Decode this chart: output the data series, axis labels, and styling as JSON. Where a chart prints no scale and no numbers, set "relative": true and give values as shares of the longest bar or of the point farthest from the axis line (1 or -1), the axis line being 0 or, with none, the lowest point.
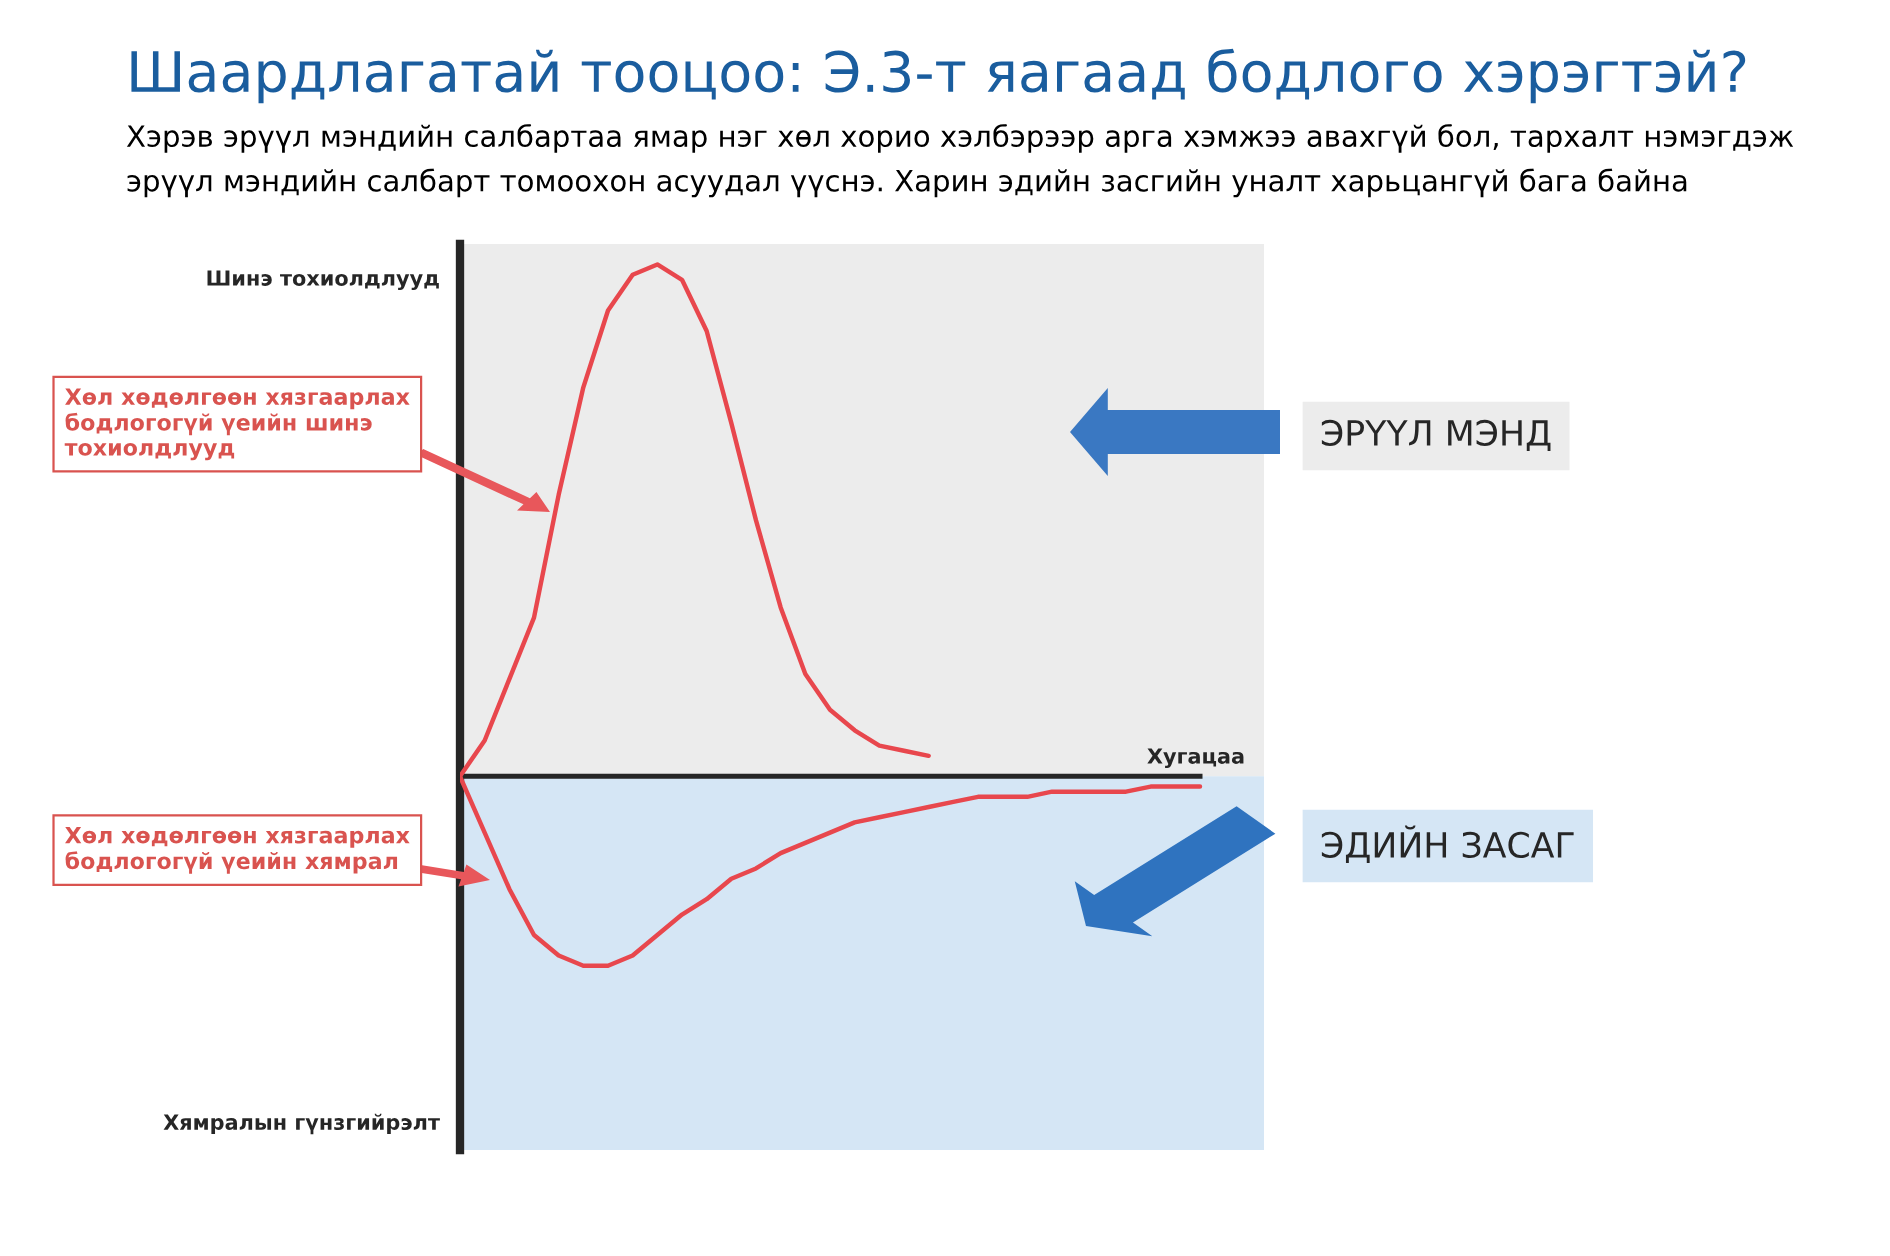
{
  "chart_data": {
    "type": "line",
    "title": "Шаардлагатай тооцоо: Э.3-т яагаад бодлого хэрэгтэй?",
    "subtitle": "Хэрэв эрүүл мэндийн салбартаа ямар нэг хөл хорио хэлбэрээр арга хэмжээ авахгүй бол, тархалт нэмэгдэж эрүүл мэндийн салбарт томоохон асуудал үүснэ. Харин эдийн засгийн уналт харьцангүй бага байна",
    "ylabel": "Шинэ тохиолдлууд",
    "xlabel": "Хугацаа",
    "annotations": [
      "Хямралын гүнзгийрэлт",
      "Хөл хөдөлгөөн хязгаарлах бодлогогүй үеийн шинэ тохиолдлууд",
      "Хөл хөдөлгөөн хязгаарлах бодлогогүй үеийн хямрал"
    ],
    "relative": true,
    "categories": [
      null,
      null,
      null,
      null,
      null,
      null,
      null,
      null,
      null,
      null,
      null,
      null,
      null,
      null,
      null,
      null,
      null,
      null,
      null,
      null,
      null,
      null,
      null,
      null,
      null,
      null,
      null,
      null,
      null,
      null,
      null
    ],
    "series": [
      {
        "color": "#e8474d",
        "values": [
          0,
          0.07,
          0.19,
          0.31,
          0.55,
          0.76,
          0.91,
          0.98,
          1.0,
          0.97,
          0.87,
          0.69,
          0.5,
          0.33,
          0.2,
          0.13,
          0.09,
          0.06,
          0.05,
          0.04,
          null,
          null,
          null,
          null,
          null,
          null,
          null,
          null,
          null,
          null,
          null
        ]
      },
      {
        "color": "#e8474d",
        "values": [
          0,
          -0.11,
          -0.22,
          -0.31,
          -0.35,
          -0.37,
          -0.37,
          -0.35,
          -0.31,
          -0.27,
          -0.24,
          -0.2,
          -0.18,
          -0.15,
          -0.13,
          -0.11,
          -0.09,
          -0.08,
          -0.07,
          -0.06,
          -0.05,
          -0.04,
          -0.04,
          -0.04,
          -0.03,
          -0.03,
          -0.03,
          -0.03,
          -0.02,
          -0.02,
          -0.02
        ]
      }
    ],
    "bands": [
      {
        "axis": "y",
        "from": 0,
        "to": 1.04,
        "label": "ЭРҮҮЛ МЭНД",
        "color": "#ececec"
      },
      {
        "axis": "y",
        "from": -0.73,
        "to": 0,
        "label": "ЭДИЙН ЗАСАГ",
        "color": "#d5e6f5"
      }
    ],
    "marker": "none",
    "line_style": "solid"
  }
}
